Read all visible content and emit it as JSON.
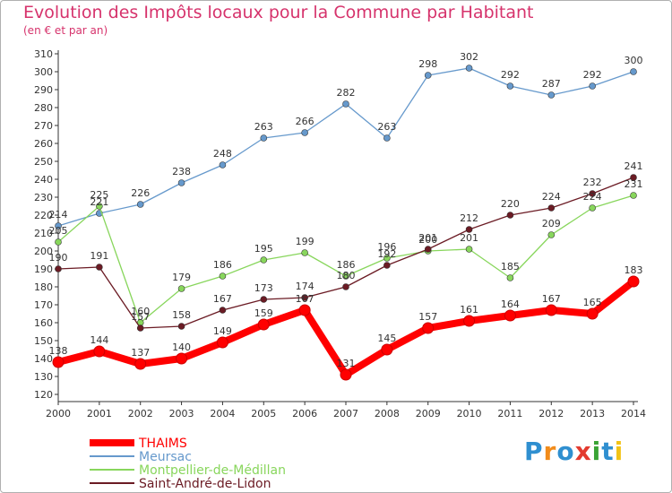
{
  "chart_data": {
    "type": "line",
    "title": "Evolution des Impôts locaux pour la Commune par Habitant",
    "subtitle": "(en € et par an)",
    "xlabel": "",
    "ylabel": "",
    "ylim": [
      120,
      310
    ],
    "yticks": [
      120,
      130,
      140,
      150,
      160,
      170,
      180,
      190,
      200,
      210,
      220,
      230,
      240,
      250,
      260,
      270,
      280,
      290,
      300,
      310
    ],
    "categories": [
      "2000",
      "2001",
      "2002",
      "2003",
      "2004",
      "2005",
      "2006",
      "2007",
      "2008",
      "2009",
      "2010",
      "2011",
      "2012",
      "2013",
      "2014"
    ],
    "series": [
      {
        "name": "THAIMS",
        "color": "#ff0000",
        "values": [
          138,
          144,
          137,
          140,
          149,
          159,
          167,
          131,
          145,
          157,
          161,
          164,
          167,
          165,
          183
        ]
      },
      {
        "name": "Meursac",
        "color": "#6699cc",
        "values": [
          214,
          221,
          226,
          238,
          248,
          263,
          266,
          282,
          263,
          298,
          302,
          292,
          287,
          292,
          300
        ]
      },
      {
        "name": "Montpellier-de-Médillan",
        "color": "#88d65c",
        "values": [
          205,
          225,
          160,
          179,
          186,
          195,
          199,
          186,
          196,
          200,
          201,
          185,
          209,
          224,
          231
        ]
      },
      {
        "name": "Saint-André-de-Lidon",
        "color": "#6b1b24",
        "values": [
          190,
          191,
          157,
          158,
          167,
          173,
          174,
          180,
          192,
          201,
          212,
          220,
          224,
          232,
          241
        ]
      }
    ],
    "legend_position": "bottom-left",
    "grid": false
  },
  "logo": {
    "text": "Proxiti",
    "colors": [
      "#2f8fd0",
      "#f28c1b",
      "#2f8fd0",
      "#e33b2f",
      "#3aa335",
      "#2f8fd0",
      "#f2c316"
    ]
  }
}
